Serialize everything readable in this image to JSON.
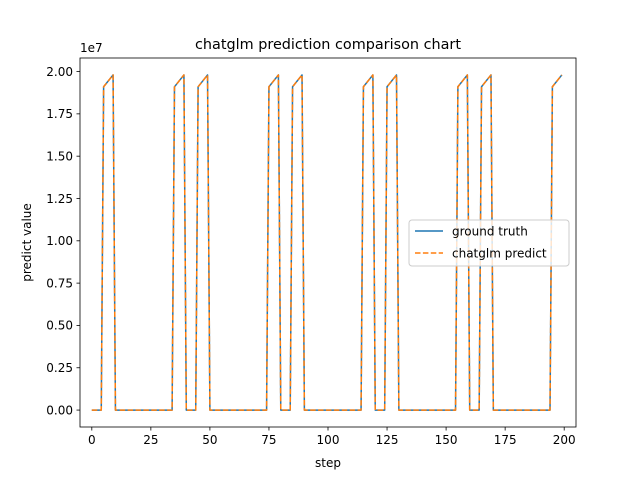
{
  "chart_data": {
    "type": "line",
    "title": "chatglm prediction comparison chart",
    "xlabel": "step",
    "ylabel": "predict value",
    "y_offset_label": "1e7",
    "xlim": [
      -5,
      205
    ],
    "ylim": [
      -1000000,
      20800000
    ],
    "x_ticks": [
      0,
      25,
      50,
      75,
      100,
      125,
      150,
      175,
      200
    ],
    "x_tick_labels": [
      "0",
      "25",
      "50",
      "75",
      "100",
      "125",
      "150",
      "175",
      "200"
    ],
    "y_ticks": [
      0,
      2500000,
      5000000,
      7500000,
      10000000,
      12500000,
      15000000,
      17500000,
      20000000
    ],
    "y_tick_labels": [
      "0.00",
      "0.25",
      "0.50",
      "0.75",
      "1.00",
      "1.25",
      "1.50",
      "1.75",
      "2.00"
    ],
    "legend_position": "center-right",
    "series": [
      {
        "name": "ground truth",
        "color": "#1f77b4",
        "style": "solid",
        "x": [
          0,
          4,
          5,
          9,
          10,
          34,
          35,
          39,
          40,
          44,
          45,
          49,
          50,
          74,
          75,
          79,
          80,
          84,
          85,
          89,
          90,
          114,
          115,
          119,
          120,
          124,
          125,
          129,
          130,
          154,
          155,
          159,
          160,
          164,
          165,
          169,
          170,
          194,
          195,
          199
        ],
        "y": [
          0,
          0,
          19100000,
          19800000,
          0,
          0,
          19100000,
          19800000,
          0,
          0,
          19100000,
          19800000,
          0,
          0,
          19100000,
          19800000,
          0,
          0,
          19100000,
          19800000,
          0,
          0,
          19100000,
          19800000,
          0,
          0,
          19100000,
          19800000,
          0,
          0,
          19100000,
          19800000,
          0,
          0,
          19100000,
          19800000,
          0,
          0,
          19100000,
          19800000
        ]
      },
      {
        "name": "chatglm predict",
        "color": "#ff7f0e",
        "style": "dashed",
        "x": [
          0,
          4,
          5,
          9,
          10,
          34,
          35,
          39,
          40,
          44,
          45,
          49,
          50,
          74,
          75,
          79,
          80,
          84,
          85,
          89,
          90,
          114,
          115,
          119,
          120,
          124,
          125,
          129,
          130,
          154,
          155,
          159,
          160,
          164,
          165,
          169,
          170,
          194,
          195,
          199
        ],
        "y": [
          0,
          0,
          19100000,
          19800000,
          0,
          0,
          19100000,
          19800000,
          0,
          0,
          19100000,
          19800000,
          0,
          0,
          19100000,
          19800000,
          0,
          0,
          19100000,
          19800000,
          0,
          0,
          19100000,
          19800000,
          0,
          0,
          19100000,
          19800000,
          0,
          0,
          19100000,
          19800000,
          0,
          0,
          19100000,
          19800000,
          0,
          0,
          19100000,
          19800000
        ]
      }
    ]
  }
}
